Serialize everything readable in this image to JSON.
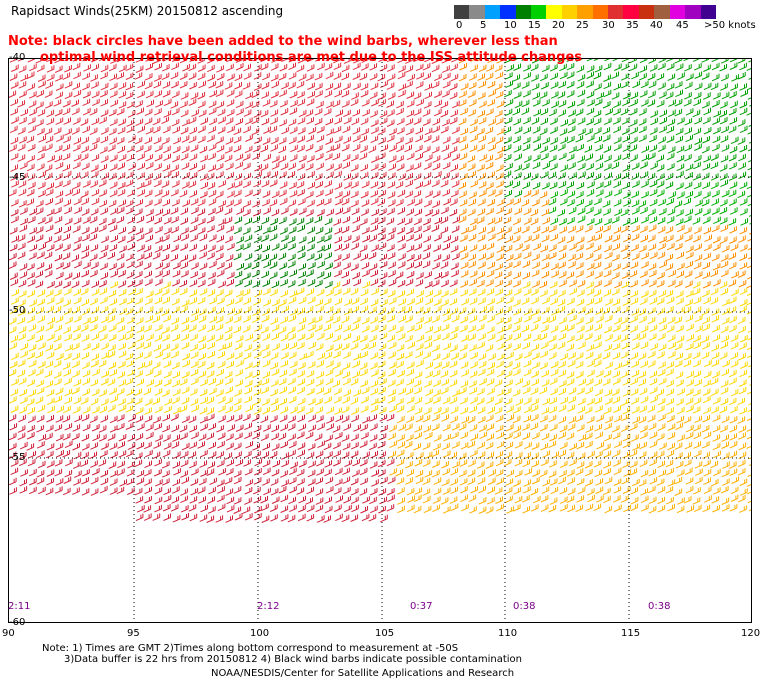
{
  "title": "Rapidsact Winds(25KM) 20150812 ascending",
  "note": {
    "line1": "Note: black circles have been added to the wind barbs, wherever less than",
    "line2": "optimal wind retrieval conditions are met due to the ISS attitude changes"
  },
  "colorbar": {
    "colors": [
      "#404040",
      "#8a8a8a",
      "#00a0ff",
      "#0030ff",
      "#008000",
      "#00d000",
      "#ffff00",
      "#ffd000",
      "#ffa000",
      "#ff7000",
      "#e03030",
      "#ff0040",
      "#c83010",
      "#a06040",
      "#e000e0",
      "#a000c0",
      "#400090"
    ],
    "labels": [
      "0",
      "5",
      "10",
      "15",
      "20",
      "25",
      "30",
      "35",
      "40",
      "45",
      ">50 knots"
    ]
  },
  "map": {
    "lat_labels": [
      "-40",
      "-45",
      "-50",
      "-55",
      "-60"
    ],
    "lon_labels": [
      "90",
      "95",
      "100",
      "105",
      "110",
      "115",
      "120"
    ],
    "time_labels": [
      "2:11",
      "2:12",
      "0:37",
      "0:38",
      "0:38"
    ]
  },
  "footer": {
    "line1": "Note: 1) Times are GMT 2)Times along bottom correspond to measurement at -50S",
    "line2": "3)Data buffer is 22 hrs from 20150812 4) Black wind barbs indicate possible contamination",
    "credit": "NOAA/NESDIS/Center for Satellite Applications and Research"
  }
}
